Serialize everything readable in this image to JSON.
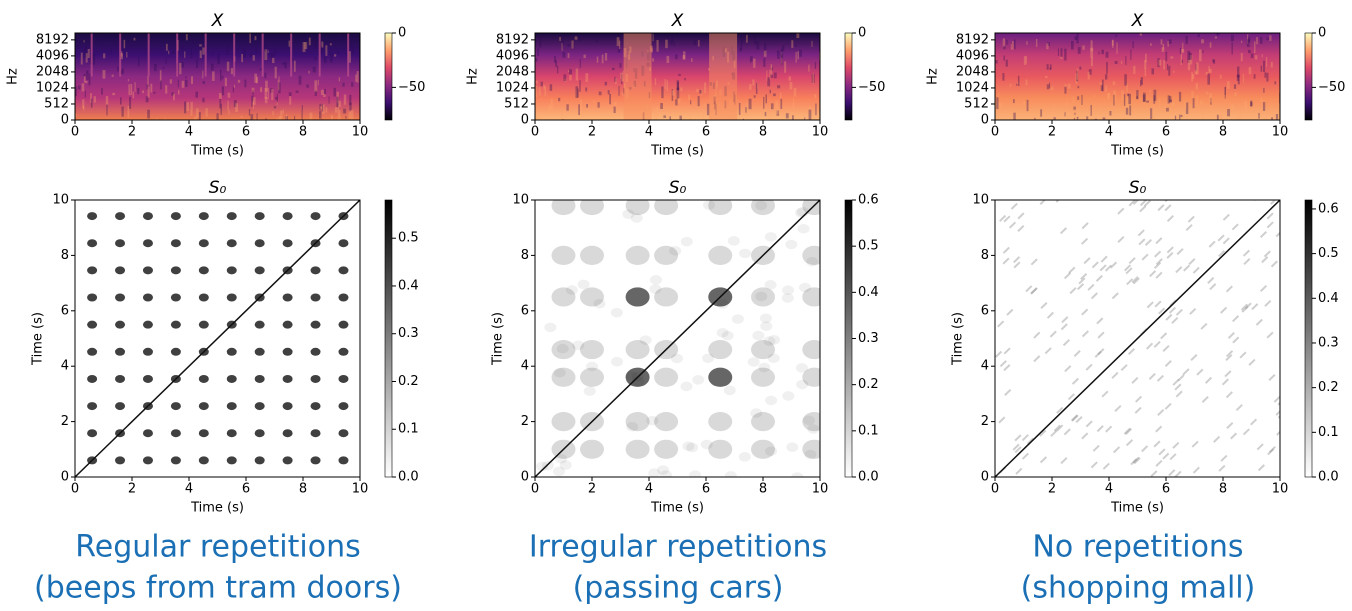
{
  "chart_data": [
    {
      "type": "spectrogram",
      "title": "X",
      "xlabel": "Time (s)",
      "ylabel": "Hz",
      "xlim": [
        0,
        10
      ],
      "xticks": [
        0,
        2,
        4,
        6,
        8,
        10
      ],
      "ylim": [
        0,
        11025
      ],
      "yscale": "symlog",
      "linthresh": 512,
      "yticks": [
        0,
        512,
        1024,
        2048,
        4096,
        8192
      ],
      "clim": [
        -80,
        0
      ],
      "cticks": [
        0,
        {
          "value": -50,
          "label": "−50"
        }
      ],
      "colormap": [
        "#000004",
        "#3b0f70",
        "#8c2981",
        "#de4968",
        "#fe9f6d",
        "#fcfdbf"
      ]
    },
    {
      "type": "heatmap",
      "title": "S₀",
      "xlabel": "Time (s)",
      "ylabel": "Time (s)",
      "xlim": [
        0,
        10
      ],
      "xticks": [
        0,
        2,
        4,
        6,
        8,
        10
      ],
      "ylim": [
        0,
        10
      ],
      "yticks": [
        0,
        2,
        4,
        6,
        8,
        10
      ],
      "clim": [
        0,
        0.58
      ],
      "cticks": [
        {
          "value": 0,
          "label": "0.0"
        },
        0.1,
        0.2,
        0.3,
        0.4,
        0.5
      ],
      "colormap": [
        "#ffffff",
        "#000000"
      ]
    },
    {
      "type": "spectrogram",
      "title": "X",
      "xlabel": "Time (s)",
      "ylabel": "Hz",
      "xlim": [
        0,
        10
      ],
      "xticks": [
        0,
        2,
        4,
        6,
        8,
        10
      ],
      "ylim": [
        0,
        11025
      ],
      "yscale": "symlog",
      "linthresh": 512,
      "yticks": [
        0,
        512,
        1024,
        2048,
        4096,
        8192
      ],
      "clim": [
        -80,
        0
      ],
      "cticks": [
        0,
        {
          "value": -50,
          "label": "−50"
        }
      ],
      "colormap": [
        "#000004",
        "#3b0f70",
        "#8c2981",
        "#de4968",
        "#fe9f6d",
        "#fcfdbf"
      ]
    },
    {
      "type": "heatmap",
      "title": "S₀",
      "xlabel": "Time (s)",
      "ylabel": "Time (s)",
      "xlim": [
        0,
        10
      ],
      "xticks": [
        0,
        2,
        4,
        6,
        8,
        10
      ],
      "ylim": [
        0,
        10
      ],
      "yticks": [
        0,
        2,
        4,
        6,
        8,
        10
      ],
      "clim": [
        0,
        0.6
      ],
      "cticks": [
        {
          "value": 0,
          "label": "0.0"
        },
        0.1,
        0.2,
        0.3,
        0.4,
        0.5,
        0.6
      ],
      "colormap": [
        "#ffffff",
        "#000000"
      ]
    },
    {
      "type": "spectrogram",
      "title": "X",
      "xlabel": "Time (s)",
      "ylabel": "Hz",
      "xlim": [
        0,
        10
      ],
      "xticks": [
        0,
        2,
        4,
        6,
        8,
        10
      ],
      "ylim": [
        0,
        11025
      ],
      "yscale": "symlog",
      "linthresh": 512,
      "yticks": [
        0,
        512,
        1024,
        2048,
        4096,
        8192
      ],
      "clim": [
        -80,
        0
      ],
      "cticks": [
        0,
        {
          "value": -50,
          "label": "−50"
        }
      ],
      "colormap": [
        "#000004",
        "#3b0f70",
        "#8c2981",
        "#de4968",
        "#fe9f6d",
        "#fcfdbf"
      ]
    },
    {
      "type": "heatmap",
      "title": "S₀",
      "xlabel": "Time (s)",
      "ylabel": "Time (s)",
      "xlim": [
        0,
        10
      ],
      "xticks": [
        0,
        2,
        4,
        6,
        8,
        10
      ],
      "ylim": [
        0,
        10
      ],
      "yticks": [
        0,
        2,
        4,
        6,
        8,
        10
      ],
      "clim": [
        0,
        0.62
      ],
      "cticks": [
        {
          "value": 0,
          "label": "0.0"
        },
        0.1,
        0.2,
        0.3,
        0.4,
        0.5,
        0.6
      ],
      "colormap": [
        "#ffffff",
        "#000000"
      ]
    }
  ],
  "captions": [
    [
      "Regular repetitions",
      "(beeps from tram doors)"
    ],
    [
      "Irregular repetitions",
      "(passing cars)"
    ],
    [
      "No repetitions",
      "(shopping mall)"
    ]
  ]
}
